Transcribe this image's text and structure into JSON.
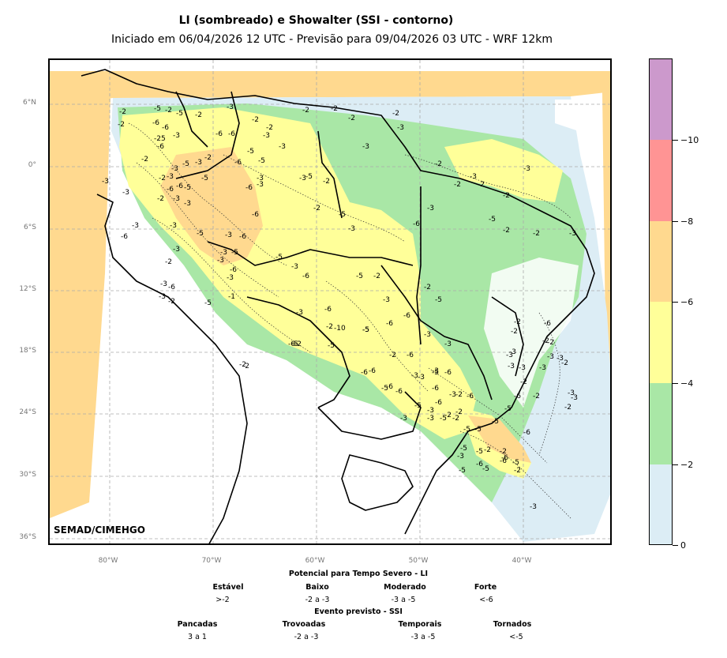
{
  "title": "LI (sombreado) e Showalter (SSI - contorno)",
  "subtitle": "Iniciado em 06/04/2026 12 UTC - Previsão para 09/04/2026 03 UTC - WRF 12km",
  "credit": "SEMAD/CIMEHGO",
  "lat_labels": [
    "6°N",
    "0°",
    "6°S",
    "12°S",
    "18°S",
    "24°S",
    "30°S",
    "36°S"
  ],
  "lon_labels": [
    "80°W",
    "70°W",
    "60°W",
    "50°W",
    "40°W"
  ],
  "colorbar": {
    "labels": [
      "0",
      "−2",
      "−4",
      "−6",
      "−8",
      "−10"
    ],
    "colors": [
      "#dcedf5",
      "#a9e7a6",
      "#ffff99",
      "#ffd98f",
      "#ff9494",
      "#cc99cc"
    ]
  },
  "legend": {
    "li_heading": "Potencial para Tempo Severo - LI",
    "li_classes": [
      {
        "name": "Estável",
        "range": ">-2"
      },
      {
        "name": "Baixo",
        "range": "-2 a -3"
      },
      {
        "name": "Moderado",
        "range": "-3 a -5"
      },
      {
        "name": "Forte",
        "range": "<-6"
      }
    ],
    "ssi_heading": "Evento previsto - SSI",
    "ssi_classes": [
      {
        "name": "Pancadas",
        "range": "3 a 1"
      },
      {
        "name": "Trovoadas",
        "range": "-2 a -3"
      },
      {
        "name": "Temporais",
        "range": "-3 a -5"
      },
      {
        "name": "Tornados",
        "range": "<-5"
      }
    ]
  },
  "contour_labels": [
    "-2",
    "-5",
    "-2",
    "-3",
    "-2",
    "-2",
    "-2",
    "-2",
    "-6",
    "-5",
    "-2",
    "-6",
    "-3",
    "-2",
    "-3",
    "-2",
    "-25",
    "-6",
    "-3",
    "-6",
    "-6",
    "-2",
    "-5",
    "-3",
    "-3",
    "-2",
    "-3",
    "-5",
    "-3",
    "-2",
    "-6",
    "-5",
    "-3",
    "-2",
    "-5",
    "-3",
    "-2",
    "-2",
    "-3",
    "-3",
    "-3",
    "-5",
    "-2",
    "-6",
    "-3",
    "-2",
    "-2",
    "-3",
    "-3",
    "-6",
    "-5",
    "-6",
    "-2",
    "-3",
    "-3",
    "-2",
    "-3",
    "-6",
    "-5",
    "-6",
    "-2",
    "-2",
    "-5",
    "-3",
    "-6",
    "-3",
    "-5",
    "-3",
    "-3",
    "-3",
    "-3",
    "-6",
    "-3",
    "-5",
    "-6",
    "-5",
    "-3",
    "-6",
    "-2",
    "-5",
    "-2",
    "-3",
    "-2",
    "-3",
    "-5",
    "-6",
    "-5",
    "-5",
    "-3",
    "-3",
    "-6",
    "-3",
    "-2",
    "-3",
    "-3",
    "-3",
    "-6",
    "-6",
    "-6",
    "-3",
    "-3",
    "-5",
    "-6",
    "-6",
    "-2",
    "-5",
    "-3",
    "-5",
    "-2",
    "-2",
    "-5",
    "-2",
    "-2",
    "-3",
    "-6",
    "-5",
    "-3",
    "-3",
    "-2",
    "-3",
    "-6",
    "-5",
    "-1",
    "-6",
    "-5",
    "-5",
    "-2",
    "-2",
    "-3",
    "-2",
    "-10",
    "-6",
    "-3",
    "-3",
    "-6",
    "-6",
    "-5",
    "-5",
    "-6",
    "-2",
    "-3",
    "-3",
    "-5",
    "-6",
    "-2",
    "-6",
    "-5",
    "-2",
    "-6",
    "-5",
    "-3",
    "-3",
    "-2",
    "-6",
    "-2",
    "-2",
    "-3",
    "-5",
    "-5",
    "-6",
    "-5",
    "-2",
    "-3",
    "-3",
    "-2",
    "-2",
    "-2",
    "-2",
    "-3",
    "-6"
  ],
  "colors": {
    "stable": "#dcedf5",
    "low": "#a9e7a6",
    "moderate": "#ffff99",
    "strong": "#ffd98f",
    "very_strong": "#ff9494",
    "extreme": "#cc99cc"
  }
}
